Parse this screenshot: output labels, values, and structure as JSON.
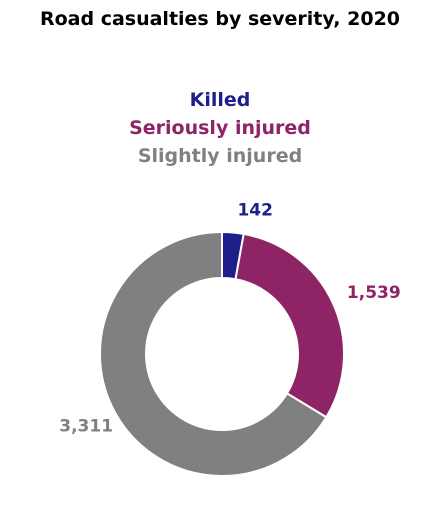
{
  "chart_data": {
    "type": "pie",
    "variant": "donut",
    "title": "Road casualties by severity, 2020",
    "legend_position": "top",
    "categories": [
      "Killed",
      "Seriously injured",
      "Slightly injured"
    ],
    "values": [
      142,
      1539,
      3311
    ],
    "value_labels": [
      "142",
      "1,539",
      "3,311"
    ],
    "colors": [
      "#1f1f8a",
      "#8e2466",
      "#808080"
    ]
  }
}
